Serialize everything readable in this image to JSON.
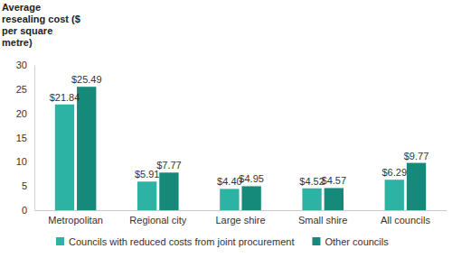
{
  "chart_data": {
    "type": "bar",
    "y_label": "Average resealing cost ($ per square metre)",
    "categories": [
      "Metropolitan",
      "Regional city",
      "Large shire",
      "Small shire",
      "All councils"
    ],
    "series": [
      {
        "name": "Councils with reduced costs from joint procurement",
        "color": "#2cb3a3",
        "values": [
          21.84,
          5.91,
          4.4,
          4.52,
          6.29
        ],
        "value_labels": [
          "$21.84",
          "$5.91",
          "$4.40",
          "$4.52",
          "$6.29"
        ]
      },
      {
        "name": "Other councils",
        "color": "#168a7a",
        "values": [
          25.49,
          7.77,
          4.95,
          4.57,
          9.77
        ],
        "value_labels": [
          "$25.49",
          "$7.77",
          "$4.95",
          "$4.57",
          "$9.77"
        ]
      }
    ],
    "ylim": [
      0,
      30
    ],
    "yticks": [
      0,
      5,
      10,
      15,
      20,
      25,
      30
    ],
    "grid": false,
    "data_labels": true,
    "legend": "bottom"
  }
}
